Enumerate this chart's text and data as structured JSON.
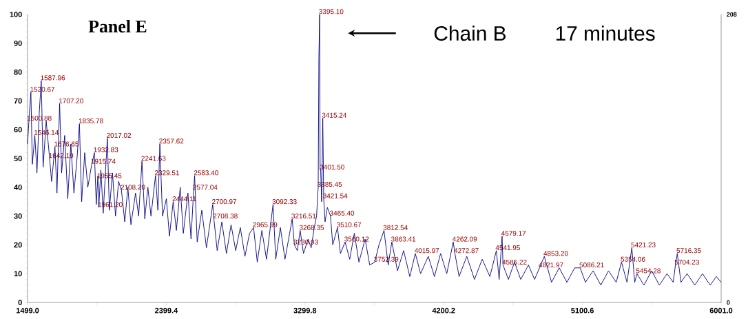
{
  "chart_data": {
    "type": "line",
    "title": "Panel E",
    "x": [
      1499,
      1510,
      1520.67,
      1530,
      1546.14,
      1560,
      1575,
      1587.96,
      1600,
      1620,
      1642.19,
      1655,
      1676.65,
      1690,
      1707.2,
      1720,
      1740,
      1760,
      1780,
      1800,
      1820,
      1835.78,
      1850,
      1870,
      1890,
      1915.74,
      1932.83,
      1945,
      1955.45,
      1961.2,
      1975,
      1990,
      2017.02,
      2030,
      2050,
      2070,
      2090,
      2108.2,
      2130,
      2150,
      2170,
      2200,
      2220,
      2241.63,
      2260,
      2280,
      2300,
      2329.51,
      2345,
      2357.62,
      2375,
      2400,
      2420,
      2444.11,
      2465,
      2490,
      2510,
      2540,
      2560,
      2577.04,
      2583.4,
      2600,
      2630,
      2660,
      2700.97,
      2708.38,
      2730,
      2760,
      2790,
      2820,
      2850,
      2880,
      2910,
      2940,
      2965.99,
      2990,
      3020,
      3050,
      3092.33,
      3110,
      3140,
      3170,
      3200,
      3216.51,
      3230.93,
      3250,
      3268.35,
      3290,
      3320,
      3340,
      3360,
      3375,
      3385.45,
      3390,
      3395.1,
      3398,
      3401.5,
      3408,
      3415.24,
      3421.54,
      3430,
      3445,
      3465.4,
      3480,
      3510.67,
      3530,
      3560.12,
      3590,
      3620,
      3650,
      3690,
      3720,
      3752.39,
      3780,
      3812.54,
      3840,
      3863.41,
      3900,
      3940,
      3980,
      4015.97,
      4050,
      4100,
      4140,
      4180,
      4220,
      4262.09,
      4272.87,
      4300,
      4350,
      4400,
      4450,
      4500,
      4541.95,
      4560,
      4579.17,
      4585.22,
      4620,
      4660,
      4700,
      4750,
      4790,
      4821.97,
      4853.2,
      4900,
      4950,
      5000,
      5050,
      5086.21,
      5120,
      5170,
      5220,
      5270,
      5320,
      5354.06,
      5390,
      5421.23,
      5440,
      5454.28,
      5500,
      5550,
      5600,
      5650,
      5690,
      5704.23,
      5716.35,
      5740,
      5780,
      5830,
      5880,
      5930,
      5970,
      6001
    ],
    "series": [
      {
        "color": "#000080",
        "values": [
          55,
          65,
          73,
          48,
          58,
          45,
          66,
          77,
          47,
          63,
          50,
          42,
          54,
          38,
          69,
          45,
          58,
          36,
          55,
          38,
          50,
          62,
          35,
          52,
          40,
          48,
          52,
          34,
          44,
          33,
          46,
          31,
          57,
          32,
          45,
          30,
          42,
          39,
          28,
          40,
          27,
          38,
          30,
          49,
          29,
          40,
          30,
          44,
          32,
          55,
          30,
          36,
          23,
          35,
          25,
          40,
          24,
          38,
          22,
          39,
          44,
          21,
          32,
          19,
          34,
          29,
          18,
          28,
          17,
          27,
          18,
          26,
          16,
          24,
          26,
          14,
          25,
          15,
          34,
          15,
          26,
          15,
          24,
          29,
          20,
          18,
          25,
          17,
          22,
          19,
          26,
          30,
          40,
          85,
          100,
          46,
          46,
          35,
          64,
          36,
          28,
          33,
          30,
          20,
          26,
          17,
          21,
          15,
          24,
          14,
          22,
          13,
          14,
          20,
          25,
          13,
          21,
          11,
          18,
          9,
          17,
          10,
          16,
          9,
          17,
          10,
          21,
          17,
          9,
          16,
          8,
          15,
          9,
          18,
          8,
          23,
          13,
          8,
          14,
          8,
          13,
          8,
          12,
          16,
          7,
          12,
          7,
          12,
          12,
          7,
          11,
          6,
          11,
          7,
          14,
          7,
          19,
          7,
          10,
          6,
          11,
          6,
          10,
          7,
          13,
          17,
          7,
          10,
          6,
          10,
          6,
          9,
          7
        ]
      }
    ],
    "xlim": [
      1499,
      6001
    ],
    "xticks": [
      {
        "value": 1499,
        "label": "1499.0"
      },
      {
        "value": 1949.2,
        "label": null
      },
      {
        "value": 2399.4,
        "label": "2399.4"
      },
      {
        "value": 2849.6,
        "label": null
      },
      {
        "value": 3299.8,
        "label": "3299.8"
      },
      {
        "value": 3750,
        "label": null
      },
      {
        "value": 4200.2,
        "label": "4200.2"
      },
      {
        "value": 4650.4,
        "label": null
      },
      {
        "value": 5100.6,
        "label": "5100.6"
      },
      {
        "value": 5550.8,
        "label": null
      },
      {
        "value": 6001,
        "label": "6001.0"
      }
    ],
    "ylim": [
      0,
      100
    ],
    "yticks": [
      0,
      10,
      20,
      30,
      40,
      50,
      60,
      70,
      80,
      90,
      100
    ],
    "y2lim": [
      0,
      208
    ],
    "y2ticks": [
      0,
      208
    ],
    "annotations": [
      "Chain B",
      "17 minutes",
      {
        "text": "3395.10",
        "x": 3395.1,
        "y": 100
      },
      {
        "text": "1587.96",
        "x": 1587.96,
        "y": 77
      },
      {
        "text": "1520.67",
        "x": 1520.67,
        "y": 73
      },
      {
        "text": "1707.20",
        "x": 1707.2,
        "y": 69
      },
      {
        "text": "1500.88",
        "x": 1500.88,
        "y": 63
      },
      {
        "text": "1835.78",
        "x": 1835.78,
        "y": 62
      },
      {
        "text": "1546.14",
        "x": 1546.14,
        "y": 58
      },
      {
        "text": "2017.02",
        "x": 2017.02,
        "y": 57
      },
      {
        "text": "1676.65",
        "x": 1676.65,
        "y": 54
      },
      {
        "text": "1932.83",
        "x": 1932.83,
        "y": 52
      },
      {
        "text": "2357.62",
        "x": 2357.62,
        "y": 55
      },
      {
        "text": "1642.19",
        "x": 1642.19,
        "y": 50
      },
      {
        "text": "2241.63",
        "x": 2241.63,
        "y": 49
      },
      {
        "text": "1915.74",
        "x": 1915.74,
        "y": 48
      },
      {
        "text": "2329.51",
        "x": 2329.51,
        "y": 44
      },
      {
        "text": "2583.40",
        "x": 2583.4,
        "y": 44
      },
      {
        "text": "1955.45",
        "x": 1955.45,
        "y": 43
      },
      {
        "text": "2577.04",
        "x": 2577.04,
        "y": 39
      },
      {
        "text": "2108.20",
        "x": 2108.2,
        "y": 39
      },
      {
        "text": "2444.11",
        "x": 2444.11,
        "y": 35
      },
      {
        "text": "2700.97",
        "x": 2700.97,
        "y": 34
      },
      {
        "text": "1961.20",
        "x": 1961.2,
        "y": 33
      },
      {
        "text": "2708.38",
        "x": 2708.38,
        "y": 29
      },
      {
        "text": "2965.99",
        "x": 2965.99,
        "y": 26
      },
      {
        "text": "3092.33",
        "x": 3092.33,
        "y": 34
      },
      {
        "text": "3216.51",
        "x": 3216.51,
        "y": 29
      },
      {
        "text": "3268.35",
        "x": 3268.35,
        "y": 25
      },
      {
        "text": "3230.93",
        "x": 3230.93,
        "y": 20
      },
      {
        "text": "3415.24",
        "x": 3415.24,
        "y": 64
      },
      {
        "text": "3401.50",
        "x": 3401.5,
        "y": 46
      },
      {
        "text": "3385.45",
        "x": 3385.45,
        "y": 40
      },
      {
        "text": "3421.54",
        "x": 3421.54,
        "y": 36
      },
      {
        "text": "3465.40",
        "x": 3465.4,
        "y": 30
      },
      {
        "text": "3510.67",
        "x": 3510.67,
        "y": 26
      },
      {
        "text": "3560.12",
        "x": 3560.12,
        "y": 21
      },
      {
        "text": "3812.54",
        "x": 3812.54,
        "y": 25
      },
      {
        "text": "3863.41",
        "x": 3863.41,
        "y": 21
      },
      {
        "text": "4015.97",
        "x": 4015.97,
        "y": 17
      },
      {
        "text": "3752.39",
        "x": 3752.39,
        "y": 14
      },
      {
        "text": "4262.09",
        "x": 4262.09,
        "y": 21
      },
      {
        "text": "4272.87",
        "x": 4272.87,
        "y": 17
      },
      {
        "text": "4579.17",
        "x": 4579.17,
        "y": 23
      },
      {
        "text": "4541.95",
        "x": 4541.95,
        "y": 18
      },
      {
        "text": "4585.22",
        "x": 4585.22,
        "y": 13
      },
      {
        "text": "4853.20",
        "x": 4853.2,
        "y": 16
      },
      {
        "text": "4821.97",
        "x": 4821.97,
        "y": 12
      },
      {
        "text": "5086.21",
        "x": 5086.21,
        "y": 12
      },
      {
        "text": "5421.23",
        "x": 5421.23,
        "y": 19
      },
      {
        "text": "5354.06",
        "x": 5354.06,
        "y": 14
      },
      {
        "text": "5454.28",
        "x": 5454.28,
        "y": 10
      },
      {
        "text": "5716.35",
        "x": 5716.35,
        "y": 17
      },
      {
        "text": "5704.23",
        "x": 5704.23,
        "y": 13
      }
    ]
  }
}
